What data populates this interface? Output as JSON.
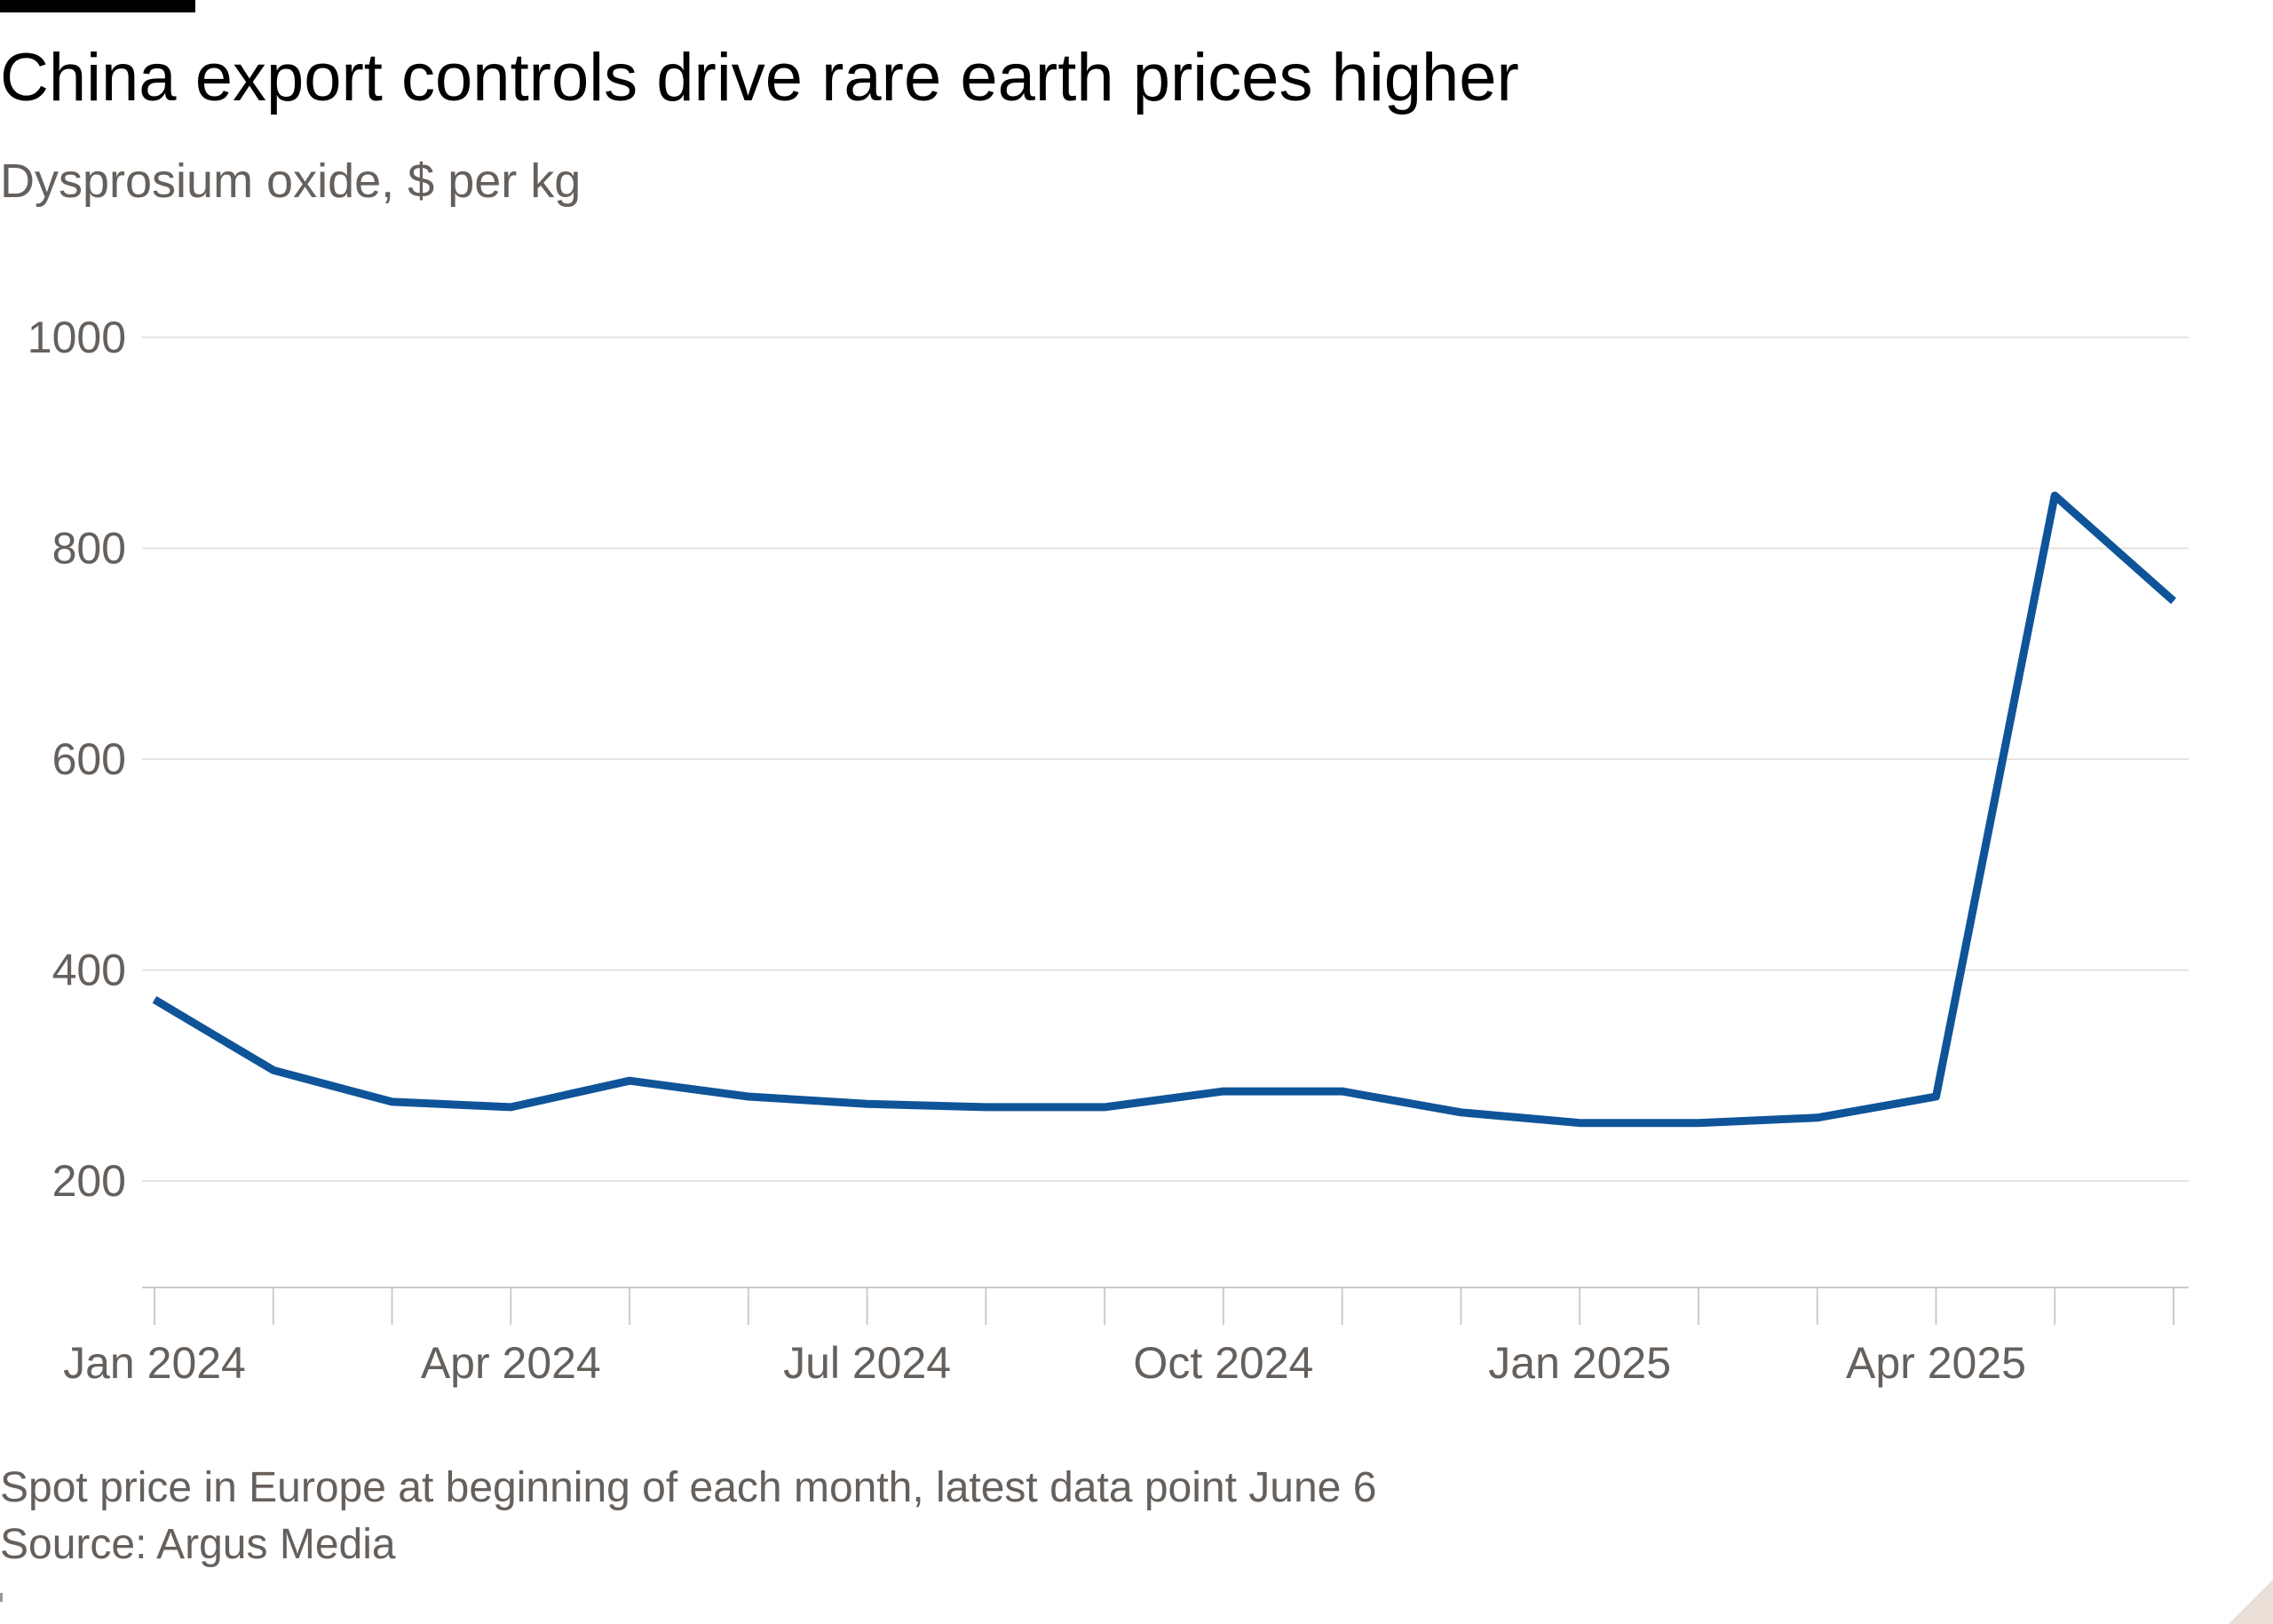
{
  "title": "China export controls drive rare earth prices higher",
  "subtitle": "Dysprosium oxide, $ per kg",
  "notes": {
    "line1": "Spot price in Europe at beginning of each month, latest data point June 6",
    "line2": "Source: Argus Media"
  },
  "colors": {
    "series": "#0f5499",
    "grid": "#e6e2de",
    "text": "#66605c",
    "baseline": "#d0cbc6"
  },
  "chart_data": {
    "type": "line",
    "x": [
      "2024-01",
      "2024-02",
      "2024-03",
      "2024-04",
      "2024-05",
      "2024-06",
      "2024-07",
      "2024-08",
      "2024-09",
      "2024-10",
      "2024-11",
      "2024-12",
      "2025-01",
      "2025-02",
      "2025-03",
      "2025-04",
      "2025-05",
      "2025-06"
    ],
    "series": [
      {
        "values": [
          372,
          305,
          275,
          270,
          295,
          280,
          273,
          270,
          270,
          285,
          285,
          265,
          255,
          255,
          260,
          280,
          850,
          750
        ]
      }
    ],
    "x_tick_labels": [
      "Jan 2024",
      "Apr 2024",
      "Jul 2024",
      "Oct 2024",
      "Jan 2025",
      "Apr 2025"
    ],
    "x_tick_label_index": [
      0,
      3,
      6,
      9,
      12,
      15
    ],
    "y_ticks": [
      200,
      400,
      600,
      800,
      1000
    ],
    "ylim": [
      100,
      1000
    ],
    "grid": true,
    "legend": "none"
  }
}
